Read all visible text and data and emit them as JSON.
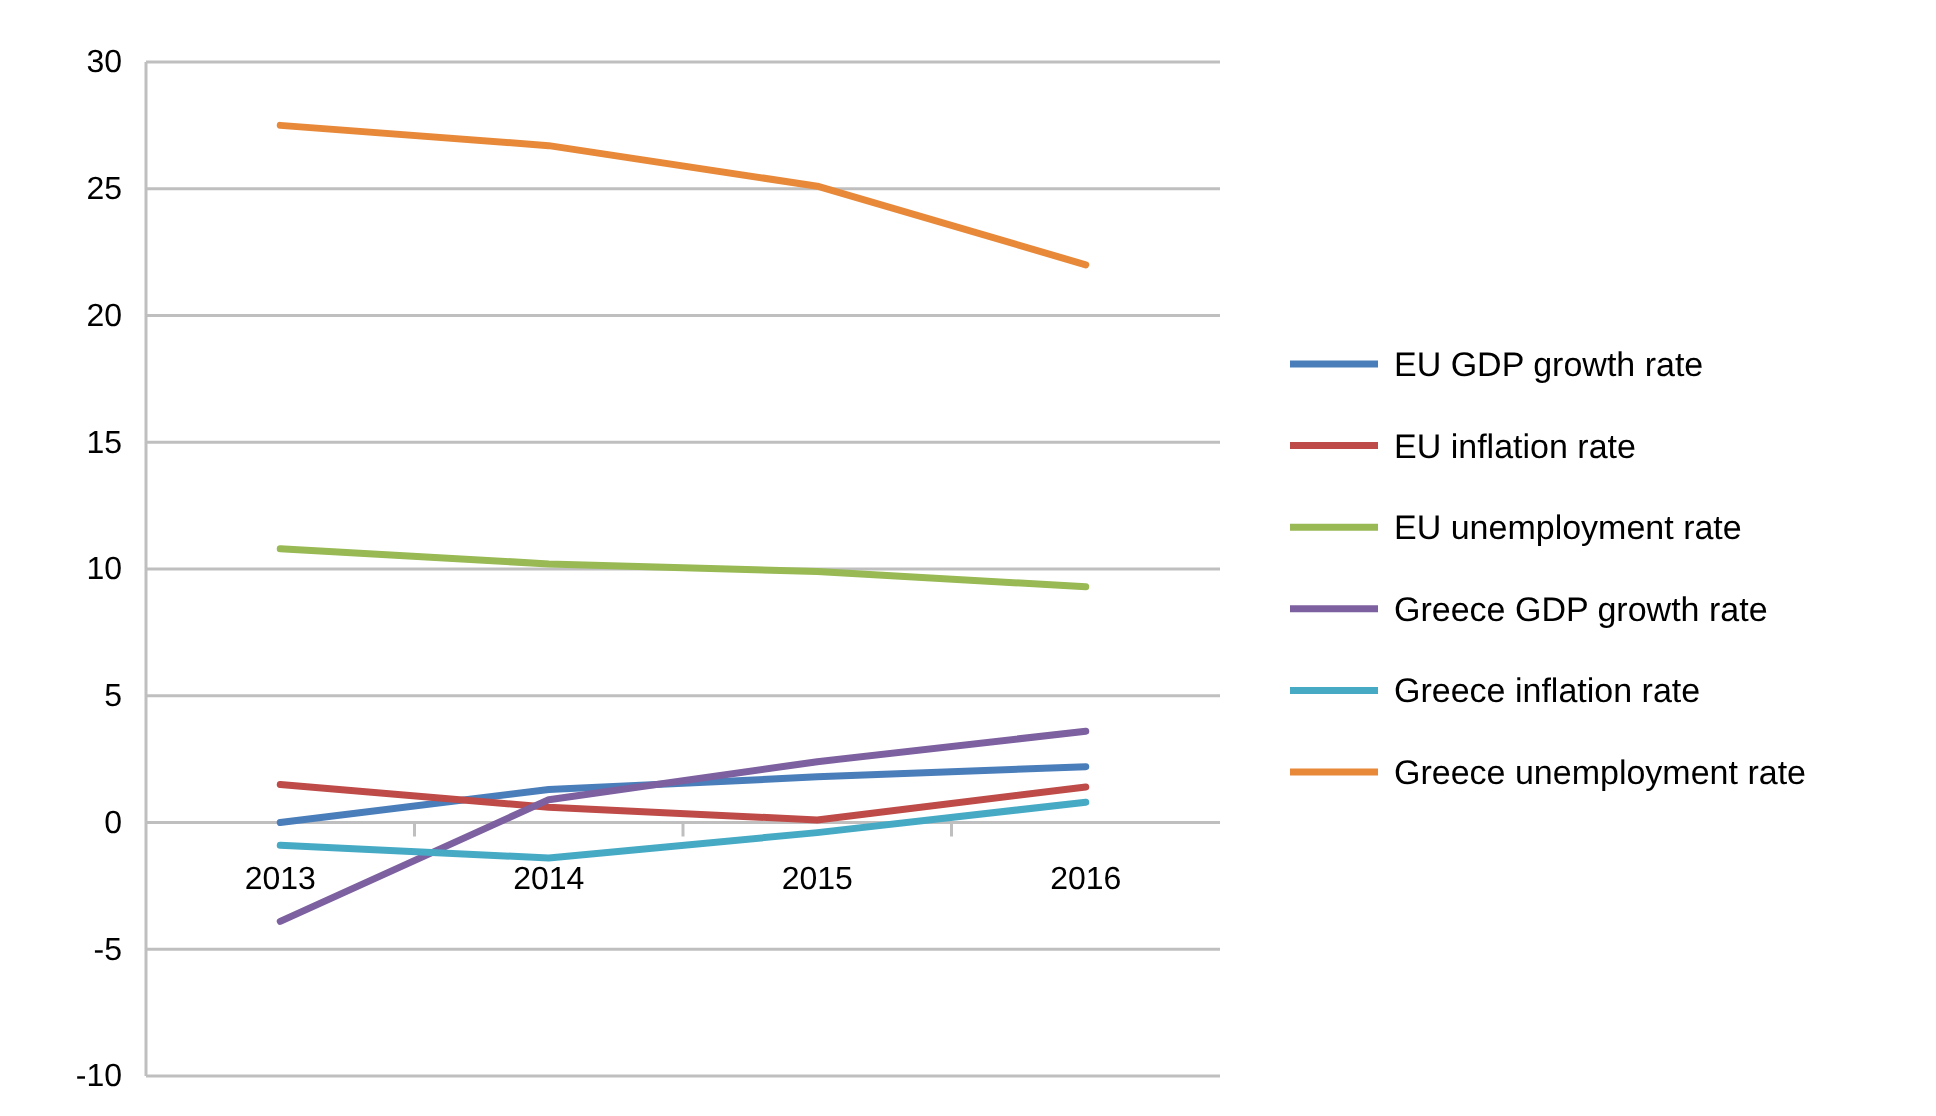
{
  "chart_data": {
    "type": "line",
    "categories": [
      "2013",
      "2014",
      "2015",
      "2016"
    ],
    "series": [
      {
        "name": "EU GDP growth rate",
        "color": "#4a7ebb",
        "values": [
          0,
          1.3,
          1.8,
          2.2
        ]
      },
      {
        "name": "EU inflation rate",
        "color": "#be4b48",
        "values": [
          1.5,
          0.6,
          0.1,
          1.4
        ]
      },
      {
        "name": "EU unemployment rate",
        "color": "#98b954",
        "values": [
          10.8,
          10.2,
          9.9,
          9.3
        ]
      },
      {
        "name": "Greece GDP growth rate",
        "color": "#7d60a0",
        "values": [
          -3.9,
          0.9,
          2.4,
          3.6
        ]
      },
      {
        "name": "Greece inflation rate",
        "color": "#46aac5",
        "values": [
          -0.9,
          -1.4,
          -0.4,
          0.8
        ]
      },
      {
        "name": "Greece unemployment rate",
        "color": "#e8893a",
        "values": [
          27.5,
          26.7,
          25.1,
          22
        ]
      }
    ],
    "ylim": [
      -10,
      30
    ],
    "yticks": [
      -10,
      -5,
      0,
      5,
      10,
      15,
      20,
      25,
      30
    ],
    "grid": "y",
    "legend": "right",
    "marker": "none",
    "line_style": "solid"
  }
}
